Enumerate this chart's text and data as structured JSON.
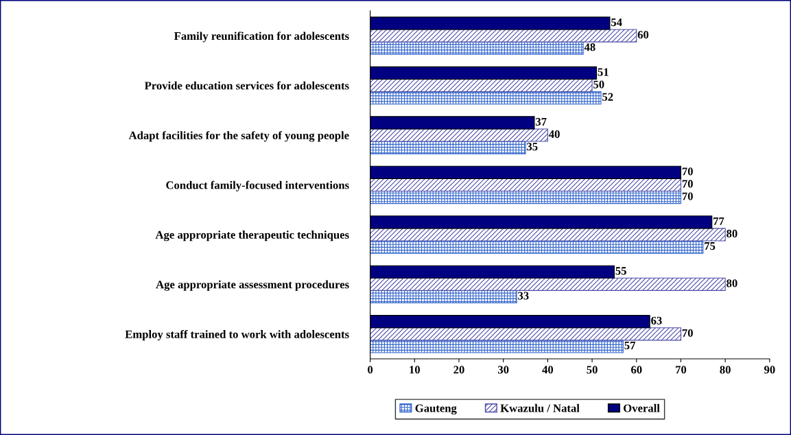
{
  "chart_data": {
    "type": "bar",
    "orientation": "horizontal",
    "categories": [
      "Family reunification for adolescents",
      "Provide education services for adolescents",
      "Adapt facilities for the safety of young people",
      "Conduct family-focused interventions",
      "Age appropriate therapeutic techniques",
      "Age appropriate assessment procedures",
      "Employ staff trained to work with adolescents"
    ],
    "series": [
      {
        "name": "Gauteng",
        "color": "#3366cc",
        "values": [
          48,
          52,
          35,
          70,
          75,
          33,
          57
        ]
      },
      {
        "name": "Kwazulu / Natal",
        "color": "#4a4aa8",
        "values": [
          60,
          50,
          40,
          70,
          80,
          80,
          70
        ]
      },
      {
        "name": "Overall",
        "color": "#000080",
        "values": [
          54,
          51,
          37,
          70,
          77,
          55,
          63
        ]
      }
    ],
    "xlim": [
      0,
      90
    ],
    "xticks": [
      0,
      10,
      20,
      30,
      40,
      50,
      60,
      70,
      80,
      90
    ],
    "data_labels": true,
    "grid": false,
    "legend": "bottom"
  }
}
